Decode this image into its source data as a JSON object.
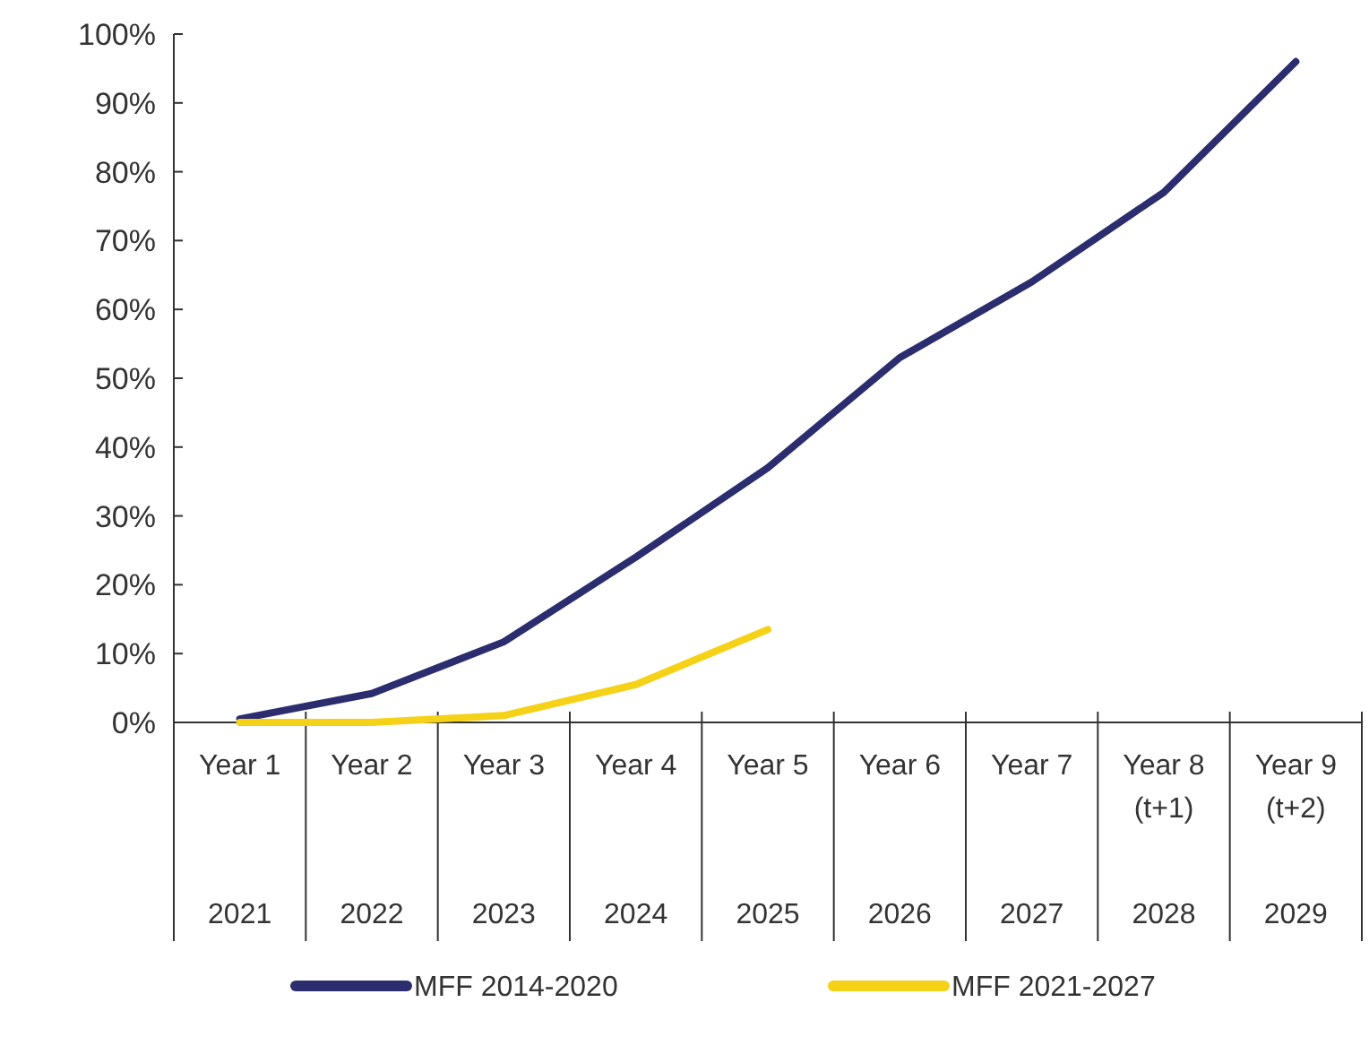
{
  "chart_data": {
    "type": "line",
    "categories": [
      "Year 1\n2021",
      "Year 2\n2022",
      "Year 3\n2023",
      "Year 4\n2024",
      "Year 5\n2025",
      "Year 6\n2026",
      "Year 7\n2027",
      "Year 8\n(t+1)\n2028",
      "Year 9\n(t+2)\n2029"
    ],
    "series": [
      {
        "name": "MFF 2014-2020",
        "color": "#2b2d6e",
        "values": [
          0.5,
          4.2,
          11.7,
          24,
          37,
          53,
          64,
          77,
          96
        ]
      },
      {
        "name": "MFF 2021-2027",
        "color": "#f5d117",
        "values": [
          0,
          0,
          1,
          5.5,
          13.5,
          null,
          null,
          null,
          null
        ]
      }
    ],
    "ylim": [
      0,
      100
    ],
    "yticks": [
      {
        "value": 0,
        "label": "0%"
      },
      {
        "value": 10,
        "label": "10%"
      },
      {
        "value": 20,
        "label": "20%"
      },
      {
        "value": 30,
        "label": "30%"
      },
      {
        "value": 40,
        "label": "40%"
      },
      {
        "value": 50,
        "label": "50%"
      },
      {
        "value": 60,
        "label": "60%"
      },
      {
        "value": 70,
        "label": "70%"
      },
      {
        "value": 80,
        "label": "80%"
      },
      {
        "value": 90,
        "label": "90%"
      },
      {
        "value": 100,
        "label": "100%"
      }
    ],
    "legend": "bottom",
    "grid": false
  }
}
